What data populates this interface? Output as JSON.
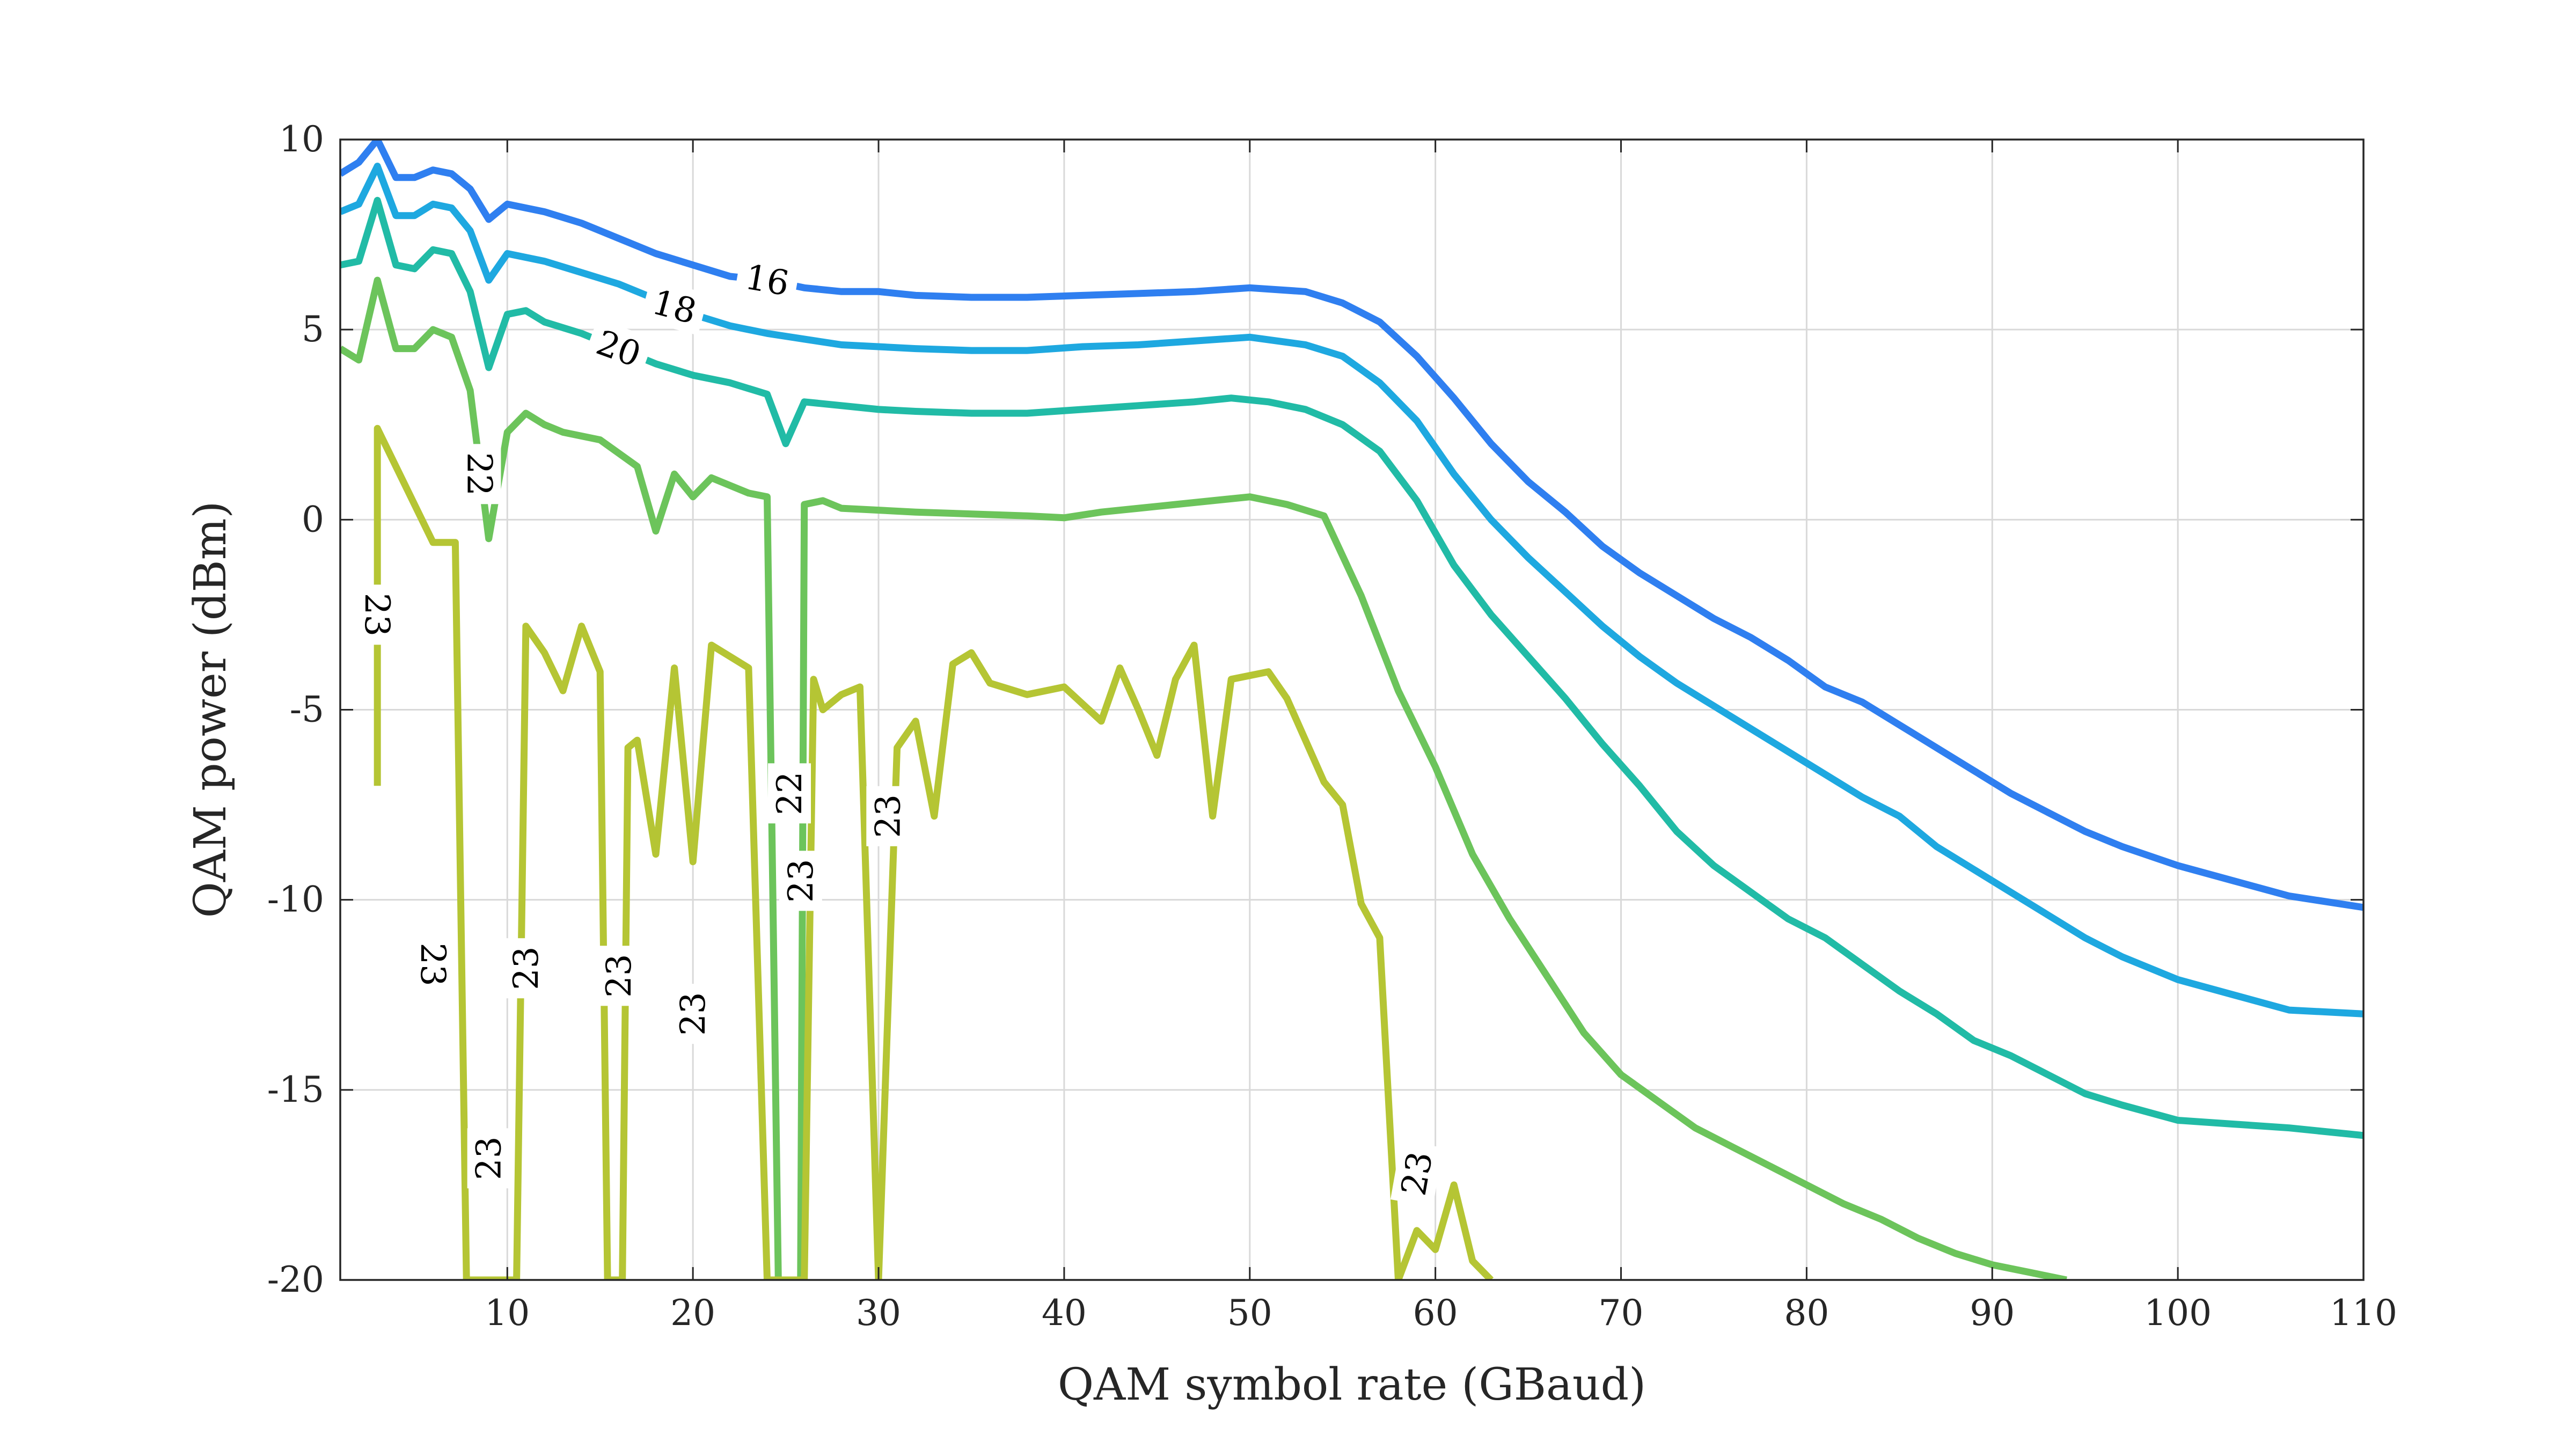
{
  "chart_data": {
    "type": "line",
    "title": "",
    "xlabel": "QAM symbol rate (GBaud)",
    "ylabel": "QAM power (dBm)",
    "xlim": [
      1,
      110
    ],
    "ylim": [
      -20,
      10
    ],
    "x_ticks": [
      10,
      20,
      30,
      40,
      50,
      60,
      70,
      80,
      90,
      100,
      110
    ],
    "y_ticks": [
      10,
      5,
      0,
      -5,
      -10,
      -15,
      -20
    ],
    "grid": true,
    "legend": "none",
    "series": [
      {
        "level": "16",
        "color": "#2f7ff0",
        "points": [
          [
            1,
            9.1
          ],
          [
            2,
            9.4
          ],
          [
            3,
            10.0
          ],
          [
            4,
            9.0
          ],
          [
            5,
            9.0
          ],
          [
            6,
            9.2
          ],
          [
            7,
            9.1
          ],
          [
            8,
            8.7
          ],
          [
            9,
            7.9
          ],
          [
            10,
            8.3
          ],
          [
            12,
            8.1
          ],
          [
            14,
            7.8
          ],
          [
            16,
            7.4
          ],
          [
            18,
            7.0
          ],
          [
            20,
            6.7
          ],
          [
            22,
            6.4
          ],
          [
            24,
            6.3
          ],
          [
            26,
            6.1
          ],
          [
            28,
            6.0
          ],
          [
            30,
            6.0
          ],
          [
            32,
            5.9
          ],
          [
            35,
            5.85
          ],
          [
            38,
            5.85
          ],
          [
            41,
            5.9
          ],
          [
            44,
            5.95
          ],
          [
            47,
            6.0
          ],
          [
            50,
            6.1
          ],
          [
            53,
            6.0
          ],
          [
            55,
            5.7
          ],
          [
            57,
            5.2
          ],
          [
            59,
            4.3
          ],
          [
            61,
            3.2
          ],
          [
            63,
            2.0
          ],
          [
            65,
            1.0
          ],
          [
            67,
            0.2
          ],
          [
            69,
            -0.7
          ],
          [
            71,
            -1.4
          ],
          [
            73,
            -2.0
          ],
          [
            75,
            -2.6
          ],
          [
            77,
            -3.1
          ],
          [
            79,
            -3.7
          ],
          [
            81,
            -4.4
          ],
          [
            83,
            -4.8
          ],
          [
            85,
            -5.4
          ],
          [
            87,
            -6.0
          ],
          [
            89,
            -6.6
          ],
          [
            91,
            -7.2
          ],
          [
            93,
            -7.7
          ],
          [
            95,
            -8.2
          ],
          [
            97,
            -8.6
          ],
          [
            100,
            -9.1
          ],
          [
            103,
            -9.5
          ],
          [
            106,
            -9.9
          ],
          [
            110,
            -10.2
          ]
        ]
      },
      {
        "level": "18",
        "color": "#1ea8e0",
        "points": [
          [
            1,
            8.1
          ],
          [
            2,
            8.3
          ],
          [
            3,
            9.3
          ],
          [
            4,
            8.0
          ],
          [
            5,
            8.0
          ],
          [
            6,
            8.3
          ],
          [
            7,
            8.2
          ],
          [
            8,
            7.6
          ],
          [
            9,
            6.3
          ],
          [
            10,
            7.0
          ],
          [
            12,
            6.8
          ],
          [
            14,
            6.5
          ],
          [
            16,
            6.2
          ],
          [
            18,
            5.8
          ],
          [
            20,
            5.4
          ],
          [
            22,
            5.1
          ],
          [
            24,
            4.9
          ],
          [
            26,
            4.75
          ],
          [
            28,
            4.6
          ],
          [
            30,
            4.55
          ],
          [
            32,
            4.5
          ],
          [
            35,
            4.45
          ],
          [
            38,
            4.45
          ],
          [
            41,
            4.55
          ],
          [
            44,
            4.6
          ],
          [
            47,
            4.7
          ],
          [
            50,
            4.8
          ],
          [
            53,
            4.6
          ],
          [
            55,
            4.3
          ],
          [
            57,
            3.6
          ],
          [
            59,
            2.6
          ],
          [
            61,
            1.2
          ],
          [
            63,
            0.0
          ],
          [
            65,
            -1.0
          ],
          [
            67,
            -1.9
          ],
          [
            69,
            -2.8
          ],
          [
            71,
            -3.6
          ],
          [
            73,
            -4.3
          ],
          [
            75,
            -4.9
          ],
          [
            77,
            -5.5
          ],
          [
            79,
            -6.1
          ],
          [
            81,
            -6.7
          ],
          [
            83,
            -7.3
          ],
          [
            85,
            -7.8
          ],
          [
            87,
            -8.6
          ],
          [
            89,
            -9.2
          ],
          [
            91,
            -9.8
          ],
          [
            93,
            -10.4
          ],
          [
            95,
            -11.0
          ],
          [
            97,
            -11.5
          ],
          [
            100,
            -12.1
          ],
          [
            103,
            -12.5
          ],
          [
            106,
            -12.9
          ],
          [
            110,
            -13.0
          ]
        ]
      },
      {
        "level": "20",
        "color": "#21bba6",
        "points": [
          [
            1,
            6.7
          ],
          [
            2,
            6.8
          ],
          [
            3,
            8.4
          ],
          [
            4,
            6.7
          ],
          [
            5,
            6.6
          ],
          [
            6,
            7.1
          ],
          [
            7,
            7.0
          ],
          [
            8,
            6.0
          ],
          [
            9,
            4.0
          ],
          [
            10,
            5.4
          ],
          [
            11,
            5.5
          ],
          [
            12,
            5.2
          ],
          [
            14,
            4.9
          ],
          [
            16,
            4.5
          ],
          [
            18,
            4.1
          ],
          [
            20,
            3.8
          ],
          [
            22,
            3.6
          ],
          [
            24,
            3.3
          ],
          [
            25,
            2.0
          ],
          [
            26,
            3.1
          ],
          [
            28,
            3.0
          ],
          [
            30,
            2.9
          ],
          [
            32,
            2.85
          ],
          [
            35,
            2.8
          ],
          [
            38,
            2.8
          ],
          [
            41,
            2.9
          ],
          [
            44,
            3.0
          ],
          [
            47,
            3.1
          ],
          [
            49,
            3.2
          ],
          [
            51,
            3.1
          ],
          [
            53,
            2.9
          ],
          [
            55,
            2.5
          ],
          [
            57,
            1.8
          ],
          [
            59,
            0.5
          ],
          [
            61,
            -1.2
          ],
          [
            63,
            -2.5
          ],
          [
            65,
            -3.6
          ],
          [
            67,
            -4.7
          ],
          [
            69,
            -5.9
          ],
          [
            71,
            -7.0
          ],
          [
            73,
            -8.2
          ],
          [
            75,
            -9.1
          ],
          [
            77,
            -9.8
          ],
          [
            79,
            -10.5
          ],
          [
            81,
            -11.0
          ],
          [
            83,
            -11.7
          ],
          [
            85,
            -12.4
          ],
          [
            87,
            -13.0
          ],
          [
            89,
            -13.7
          ],
          [
            91,
            -14.1
          ],
          [
            93,
            -14.6
          ],
          [
            95,
            -15.1
          ],
          [
            97,
            -15.4
          ],
          [
            100,
            -15.8
          ],
          [
            103,
            -15.9
          ],
          [
            106,
            -16.0
          ],
          [
            110,
            -16.2
          ]
        ]
      },
      {
        "level": "22",
        "color": "#6cc45b",
        "points": [
          [
            1,
            4.5
          ],
          [
            2,
            4.2
          ],
          [
            3,
            6.3
          ],
          [
            4,
            4.5
          ],
          [
            5,
            4.5
          ],
          [
            6,
            5.0
          ],
          [
            7,
            4.8
          ],
          [
            8,
            3.4
          ],
          [
            9,
            -0.5
          ],
          [
            10,
            2.3
          ],
          [
            11,
            2.8
          ],
          [
            12,
            2.5
          ],
          [
            13,
            2.3
          ],
          [
            15,
            2.1
          ],
          [
            17,
            1.4
          ],
          [
            18,
            -0.3
          ],
          [
            19,
            1.2
          ],
          [
            20,
            0.6
          ],
          [
            21,
            1.1
          ],
          [
            22,
            0.9
          ],
          [
            23,
            0.7
          ],
          [
            24,
            0.6
          ],
          [
            24.6,
            -20
          ],
          [
            25.8,
            -20
          ],
          [
            26,
            0.4
          ],
          [
            27,
            0.5
          ],
          [
            28,
            0.3
          ],
          [
            30,
            0.25
          ],
          [
            32,
            0.2
          ],
          [
            35,
            0.15
          ],
          [
            38,
            0.1
          ],
          [
            40,
            0.05
          ],
          [
            42,
            0.2
          ],
          [
            44,
            0.3
          ],
          [
            46,
            0.4
          ],
          [
            48,
            0.5
          ],
          [
            50,
            0.6
          ],
          [
            52,
            0.4
          ],
          [
            54,
            0.1
          ],
          [
            56,
            -2.0
          ],
          [
            58,
            -4.5
          ],
          [
            60,
            -6.5
          ],
          [
            62,
            -8.8
          ],
          [
            64,
            -10.5
          ],
          [
            66,
            -12.0
          ],
          [
            68,
            -13.5
          ],
          [
            70,
            -14.6
          ],
          [
            72,
            -15.3
          ],
          [
            74,
            -16.0
          ],
          [
            76,
            -16.5
          ],
          [
            78,
            -17.0
          ],
          [
            80,
            -17.5
          ],
          [
            82,
            -18.0
          ],
          [
            84,
            -18.4
          ],
          [
            86,
            -18.9
          ],
          [
            88,
            -19.3
          ],
          [
            90,
            -19.6
          ],
          [
            92,
            -19.8
          ],
          [
            94,
            -20.0
          ]
        ]
      },
      {
        "level": "23",
        "color": "#b5c534",
        "points": [
          [
            3,
            -7.0
          ],
          [
            3,
            2.4
          ],
          [
            6,
            -0.6
          ],
          [
            7.2,
            -0.6
          ],
          [
            7.8,
            -20
          ],
          [
            10.5,
            -20
          ],
          [
            11,
            -2.8
          ],
          [
            12,
            -3.5
          ],
          [
            13,
            -4.5
          ],
          [
            14,
            -2.8
          ],
          [
            15,
            -4.0
          ],
          [
            15.4,
            -20
          ],
          [
            16.2,
            -20
          ],
          [
            16.5,
            -6.0
          ],
          [
            17,
            -5.8
          ],
          [
            18,
            -8.8
          ],
          [
            19,
            -3.9
          ],
          [
            20,
            -9.0
          ],
          [
            21,
            -3.3
          ],
          [
            22,
            -3.6
          ],
          [
            23,
            -3.9
          ],
          [
            24,
            -20
          ],
          [
            26,
            -20
          ],
          [
            26.5,
            -4.2
          ],
          [
            27,
            -5.0
          ],
          [
            28,
            -4.6
          ],
          [
            29,
            -4.4
          ],
          [
            30,
            -20
          ],
          [
            31,
            -6.0
          ],
          [
            32,
            -5.3
          ],
          [
            33,
            -7.8
          ],
          [
            34,
            -3.8
          ],
          [
            35,
            -3.5
          ],
          [
            36,
            -4.3
          ],
          [
            38,
            -4.6
          ],
          [
            40,
            -4.4
          ],
          [
            42,
            -5.3
          ],
          [
            43,
            -3.9
          ],
          [
            44,
            -5.0
          ],
          [
            45,
            -6.2
          ],
          [
            46,
            -4.2
          ],
          [
            47,
            -3.3
          ],
          [
            48,
            -7.8
          ],
          [
            49,
            -4.2
          ],
          [
            51,
            -4.0
          ],
          [
            52,
            -4.7
          ],
          [
            54,
            -6.9
          ],
          [
            55,
            -7.5
          ],
          [
            56,
            -10.1
          ],
          [
            57,
            -11.0
          ],
          [
            58,
            -20
          ],
          [
            59,
            -18.7
          ],
          [
            60,
            -19.2
          ],
          [
            61,
            -17.5
          ],
          [
            62,
            -19.5
          ],
          [
            63,
            -20
          ]
        ]
      }
    ],
    "contour_labels": [
      {
        "text": "16",
        "x": 24,
        "y": 6.3,
        "angle": 10
      },
      {
        "text": "18",
        "x": 19,
        "y": 5.6,
        "angle": 15
      },
      {
        "text": "20",
        "x": 16,
        "y": 4.5,
        "angle": 20
      },
      {
        "text": "22",
        "x": 8.5,
        "y": 1.2,
        "angle": 90
      },
      {
        "text": "22",
        "x": 25.2,
        "y": -7.2,
        "angle": -90
      },
      {
        "text": "23",
        "x": 3,
        "y": -2.5,
        "angle": 90
      },
      {
        "text": "23",
        "x": 6,
        "y": -11.7,
        "angle": 90
      },
      {
        "text": "23",
        "x": 11,
        "y": -11.8,
        "angle": -90
      },
      {
        "text": "23",
        "x": 16,
        "y": -12.0,
        "angle": -90
      },
      {
        "text": "23",
        "x": 20,
        "y": -13.0,
        "angle": -90
      },
      {
        "text": "23",
        "x": 9,
        "y": -16.8,
        "angle": -90
      },
      {
        "text": "23",
        "x": 25.8,
        "y": -9.5,
        "angle": -90
      },
      {
        "text": "23",
        "x": 30.5,
        "y": -7.8,
        "angle": -90
      },
      {
        "text": "23",
        "x": 59,
        "y": -17.2,
        "angle": -80
      }
    ]
  }
}
